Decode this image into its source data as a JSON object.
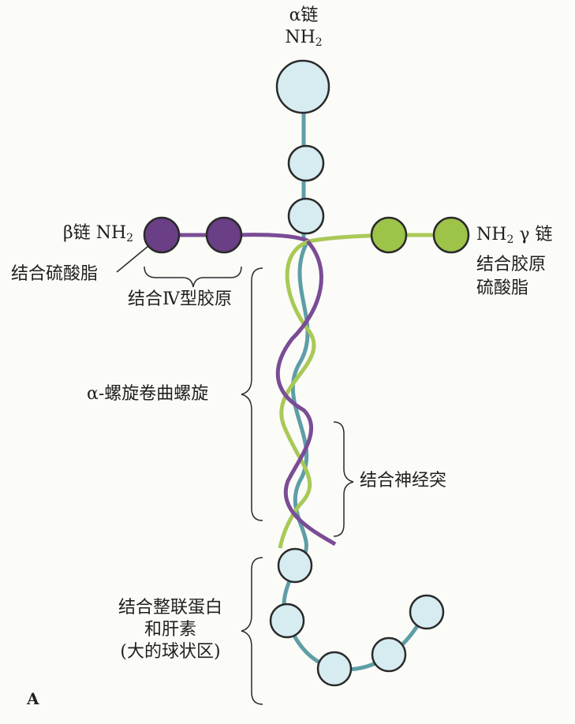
{
  "alpha_chain": {
    "name": "α链",
    "terminus_main": "NH",
    "terminus_sub": "2"
  },
  "beta_chain": {
    "name": "β链",
    "terminus_main": "NH",
    "terminus_sub": "2",
    "binding": "结合硫酸脂"
  },
  "gamma_chain": {
    "terminus_main": "NH",
    "terminus_sub": "2",
    "name": "γ 链",
    "binding_line1": "结合胶原",
    "binding_line2": "硫酸脂"
  },
  "labels": {
    "collagen_iv": "结合Ⅳ型胶原",
    "coiled_coil": "α-螺旋卷曲螺旋",
    "neurite": "结合神经突",
    "integrin_line1": "结合整联蛋白",
    "integrin_line2": "和肝素",
    "integrin_line3": "(大的球状区)"
  },
  "panel_label": "A",
  "colors": {
    "alpha": "#5e9ea6",
    "beta": "#7a4c95",
    "gamma": "#a9c957",
    "alpha_globule": "#d6ecf0",
    "beta_globule": "#6a3f86",
    "gamma_globule": "#9dc449",
    "outline": "#2a2a2a"
  }
}
